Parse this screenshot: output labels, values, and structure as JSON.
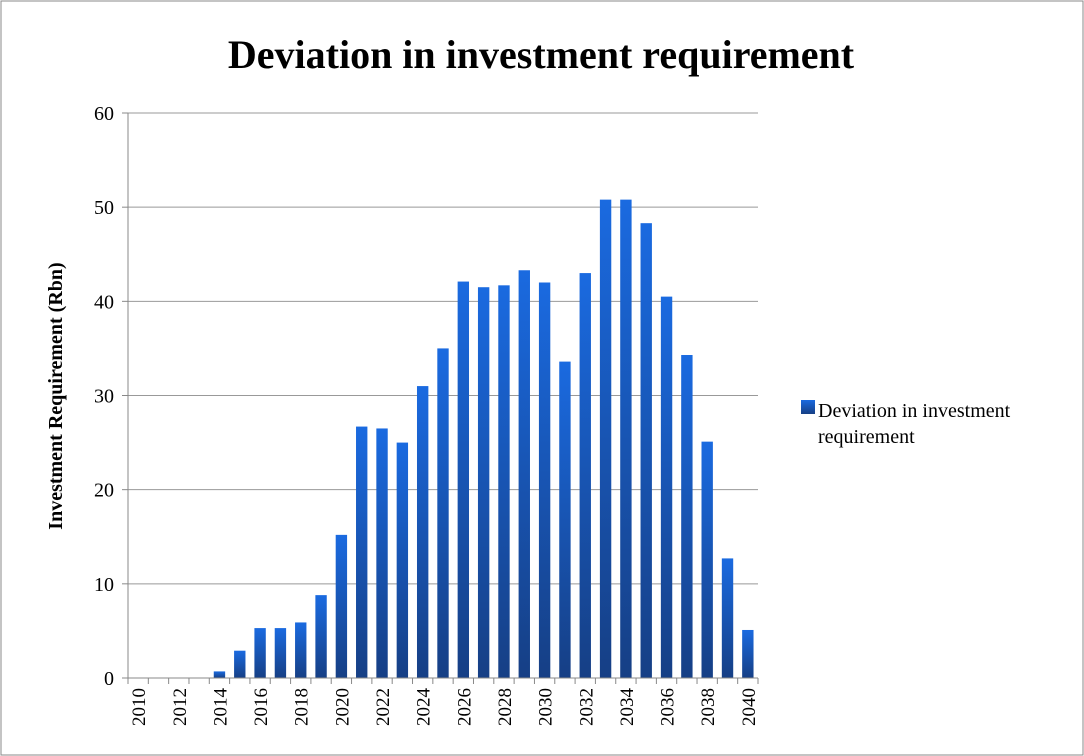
{
  "chart_data": {
    "type": "bar",
    "title": "Deviation in investment requirement",
    "y_label": "Investment Requirement (Rbn)",
    "categories": [
      "2010",
      null,
      "2012",
      null,
      "2014",
      null,
      "2016",
      null,
      "2018",
      null,
      "2020",
      null,
      "2022",
      null,
      "2024",
      null,
      "2026",
      null,
      "2028",
      null,
      "2030",
      null,
      "2032",
      null,
      "2034",
      null,
      "2036",
      null,
      "2038",
      null,
      "2040"
    ],
    "series": [
      {
        "name": "Deviation in investment requirement",
        "color": "#1f5fbf",
        "values": [
          0,
          0,
          0,
          0,
          0.7,
          2.9,
          5.3,
          5.3,
          5.9,
          8.8,
          15.2,
          26.7,
          26.5,
          25,
          31,
          35,
          42.1,
          41.5,
          41.7,
          43.3,
          42,
          33.6,
          43,
          50.8,
          50.8,
          48.3,
          40.5,
          34.3,
          25.1,
          12.7,
          5.1
        ]
      }
    ],
    "ylim": [
      0,
      60
    ],
    "yticks": [
      0,
      10,
      20,
      30,
      40,
      50,
      60
    ],
    "grid": true,
    "legend": "right"
  }
}
